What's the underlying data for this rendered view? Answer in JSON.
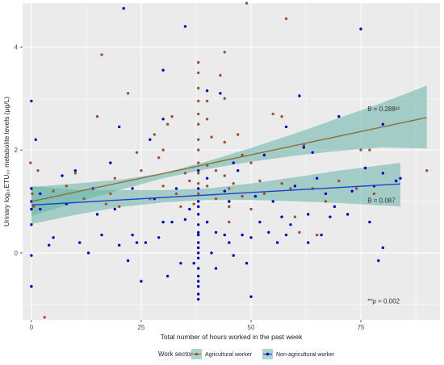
{
  "chart_data": {
    "type": "scatter",
    "xlabel": "Total number of hours worked in the past week",
    "ylabel": "Urinary log₁₀ETU₁₀ metabolite levels (μg/L)",
    "xlim": [
      -2,
      93
    ],
    "ylim": [
      -1.3,
      4.85
    ],
    "xticks": [
      0,
      25,
      50,
      75
    ],
    "yticks": [
      0,
      2,
      4
    ],
    "grid": true,
    "legend_title": "Work sector",
    "legend_placement": "bottom",
    "annotations": [
      {
        "text": "B = 0.288²²",
        "x": 76.5,
        "y": 2.75,
        "anchor": "start"
      },
      {
        "text": "B = 0.087",
        "x": 76.5,
        "y": 0.98,
        "anchor": "start"
      },
      {
        "text": "**p = 0.002",
        "x": 76.5,
        "y": -0.98,
        "anchor": "start"
      }
    ],
    "colors": {
      "agricultural_points": "#a0522d",
      "agricultural_line": "#8b6f3a",
      "non_agricultural_points": "#0000cc",
      "non_agricultural_line": "#1a3fd0",
      "ribbon": "#66b2a6",
      "panel_bg": "#ebebeb",
      "grid": "#ffffff"
    },
    "series": [
      {
        "name": "Agricultural worker",
        "color": "#a0522d",
        "fit": {
          "x": [
            0,
            90
          ],
          "y": [
            1.0,
            2.63
          ]
        },
        "ci_lower": {
          "x": [
            0,
            10,
            20,
            30,
            40,
            50,
            60,
            70,
            80,
            90
          ],
          "y": [
            0.72,
            0.98,
            1.22,
            1.45,
            1.63,
            1.77,
            1.89,
            1.98,
            2.05,
            2.03
          ]
        },
        "ci_upper": {
          "x": [
            0,
            10,
            20,
            30,
            40,
            50,
            60,
            70,
            80,
            90
          ],
          "y": [
            1.28,
            1.35,
            1.42,
            1.55,
            1.78,
            2.04,
            2.32,
            2.62,
            2.92,
            3.25
          ]
        },
        "points": [
          [
            -0.2,
            1.75
          ],
          [
            0.2,
            1.15
          ],
          [
            0.5,
            0.9
          ],
          [
            1.5,
            1.6
          ],
          [
            3,
            -1.25
          ],
          [
            5,
            1.2
          ],
          [
            8,
            1.3
          ],
          [
            10,
            1.55
          ],
          [
            12,
            1.05
          ],
          [
            15,
            2.65
          ],
          [
            16,
            3.85
          ],
          [
            17,
            0.95
          ],
          [
            18,
            1.15
          ],
          [
            19,
            1.45
          ],
          [
            20,
            0.9
          ],
          [
            22,
            3.1
          ],
          [
            24,
            1.95
          ],
          [
            25,
            1.6
          ],
          [
            27,
            1.05
          ],
          [
            28,
            2.3
          ],
          [
            29,
            1.85
          ],
          [
            30,
            2.0
          ],
          [
            30,
            1.3
          ],
          [
            31,
            2.5
          ],
          [
            32,
            2.65
          ],
          [
            33,
            1.15
          ],
          [
            34,
            0.9
          ],
          [
            35,
            1.55
          ],
          [
            36,
            1.4
          ],
          [
            37,
            0.95
          ],
          [
            38,
            3.7
          ],
          [
            38,
            3.5
          ],
          [
            38,
            3.2
          ],
          [
            38,
            2.95
          ],
          [
            38,
            2.7
          ],
          [
            38,
            2.5
          ],
          [
            38,
            2.2
          ],
          [
            38,
            2.0
          ],
          [
            38,
            1.75
          ],
          [
            38,
            1.55
          ],
          [
            38,
            1.35
          ],
          [
            38,
            1.15
          ],
          [
            38,
            0.9
          ],
          [
            40,
            2.95
          ],
          [
            40,
            2.6
          ],
          [
            40,
            1.7
          ],
          [
            40,
            1.3
          ],
          [
            41,
            2.25
          ],
          [
            42,
            1.6
          ],
          [
            42,
            1.05
          ],
          [
            43,
            3.45
          ],
          [
            44,
            3.9
          ],
          [
            44,
            3.0
          ],
          [
            44,
            2.15
          ],
          [
            44,
            1.5
          ],
          [
            45,
            1.25
          ],
          [
            45,
            0.9
          ],
          [
            46,
            1.35
          ],
          [
            47,
            2.3
          ],
          [
            48,
            1.9
          ],
          [
            48,
            1.1
          ],
          [
            49,
            4.85
          ],
          [
            50,
            1.75
          ],
          [
            50,
            0.85
          ],
          [
            52,
            1.4
          ],
          [
            53,
            1.15
          ],
          [
            55,
            2.7
          ],
          [
            57,
            2.65
          ],
          [
            57,
            1.35
          ],
          [
            59,
            1.25
          ],
          [
            60,
            0.7
          ],
          [
            61,
            0.4
          ],
          [
            62,
            2.1
          ],
          [
            64,
            1.25
          ],
          [
            65,
            0.35
          ],
          [
            67,
            1.0
          ],
          [
            70,
            1.4
          ],
          [
            74,
            1.25
          ],
          [
            75,
            2.0
          ],
          [
            77,
            2.0
          ],
          [
            78,
            1.15
          ],
          [
            90,
            1.6
          ],
          [
            58,
            4.55
          ],
          [
            45,
            0.6
          ]
        ]
      },
      {
        "name": "Non-agricultural worker",
        "color": "#0000cc",
        "fit": {
          "x": [
            0,
            84
          ],
          "y": [
            0.93,
            1.34
          ]
        },
        "ci_lower": {
          "x": [
            0,
            10,
            20,
            30,
            40,
            50,
            60,
            70,
            84
          ],
          "y": [
            0.56,
            0.74,
            0.89,
            0.98,
            1.03,
            1.03,
            1.0,
            0.97,
            0.9
          ]
        },
        "ci_upper": {
          "x": [
            0,
            10,
            20,
            30,
            40,
            50,
            60,
            70,
            84
          ],
          "y": [
            1.3,
            1.23,
            1.22,
            1.22,
            1.25,
            1.35,
            1.47,
            1.6,
            1.75
          ]
        },
        "points": [
          [
            0,
            2.95
          ],
          [
            0,
            1.25
          ],
          [
            0,
            1.0
          ],
          [
            0,
            0.85
          ],
          [
            0,
            0.55
          ],
          [
            0,
            -0.05
          ],
          [
            0,
            -0.65
          ],
          [
            1,
            2.2
          ],
          [
            2,
            1.15
          ],
          [
            2,
            0.85
          ],
          [
            4,
            0.15
          ],
          [
            5,
            0.3
          ],
          [
            7,
            1.5
          ],
          [
            8,
            0.95
          ],
          [
            10,
            1.6
          ],
          [
            11,
            0.2
          ],
          [
            13,
            0.0
          ],
          [
            14,
            1.25
          ],
          [
            15,
            0.75
          ],
          [
            16,
            0.35
          ],
          [
            18,
            1.75
          ],
          [
            19,
            0.85
          ],
          [
            20,
            2.45
          ],
          [
            20,
            0.15
          ],
          [
            21,
            4.75
          ],
          [
            22,
            -0.15
          ],
          [
            23,
            0.35
          ],
          [
            24,
            0.2
          ],
          [
            25,
            -0.55
          ],
          [
            26,
            0.2
          ],
          [
            27,
            2.2
          ],
          [
            28,
            1.05
          ],
          [
            29,
            0.3
          ],
          [
            30,
            3.55
          ],
          [
            30,
            2.6
          ],
          [
            30,
            0.6
          ],
          [
            31,
            -0.45
          ],
          [
            32,
            0.6
          ],
          [
            33,
            1.25
          ],
          [
            34,
            -0.2
          ],
          [
            35,
            4.4
          ],
          [
            35,
            0.65
          ],
          [
            36,
            0.85
          ],
          [
            37,
            -0.2
          ],
          [
            38,
            0.4
          ],
          [
            38,
            0.0
          ],
          [
            38,
            -0.3
          ],
          [
            38,
            -0.9
          ],
          [
            38,
            -0.45
          ],
          [
            38,
            -0.65
          ],
          [
            38,
            1.6
          ],
          [
            38,
            1.0
          ],
          [
            38,
            0.55
          ],
          [
            38,
            0.2
          ],
          [
            38,
            -0.1
          ],
          [
            38,
            0.75
          ],
          [
            38,
            0.35
          ],
          [
            38,
            -0.8
          ],
          [
            38,
            1.25
          ],
          [
            38,
            0.9
          ],
          [
            38,
            -0.55
          ],
          [
            38,
            0.1
          ],
          [
            40,
            3.15
          ],
          [
            40,
            1.45
          ],
          [
            40,
            0.6
          ],
          [
            41,
            0.0
          ],
          [
            42,
            0.4
          ],
          [
            42,
            -0.3
          ],
          [
            43,
            3.1
          ],
          [
            44,
            1.2
          ],
          [
            44,
            0.35
          ],
          [
            45,
            1.0
          ],
          [
            45,
            0.2
          ],
          [
            46,
            -0.05
          ],
          [
            47,
            1.6
          ],
          [
            48,
            0.35
          ],
          [
            49,
            -0.2
          ],
          [
            50,
            -0.85
          ],
          [
            50,
            0.3
          ],
          [
            51,
            1.1
          ],
          [
            52,
            0.6
          ],
          [
            53,
            1.9
          ],
          [
            54,
            0.4
          ],
          [
            55,
            1.0
          ],
          [
            56,
            0.2
          ],
          [
            57,
            0.7
          ],
          [
            58,
            0.35
          ],
          [
            58,
            2.45
          ],
          [
            59,
            0.55
          ],
          [
            60,
            1.3
          ],
          [
            61,
            3.05
          ],
          [
            62,
            2.05
          ],
          [
            63,
            0.75
          ],
          [
            64,
            1.95
          ],
          [
            65,
            1.45
          ],
          [
            66,
            0.35
          ],
          [
            67,
            1.15
          ],
          [
            68,
            0.7
          ],
          [
            70,
            2.65
          ],
          [
            72,
            0.75
          ],
          [
            73,
            1.2
          ],
          [
            75,
            4.35
          ],
          [
            76,
            1.65
          ],
          [
            77,
            0.6
          ],
          [
            78,
            1.3
          ],
          [
            79,
            -0.15
          ],
          [
            80,
            2.5
          ],
          [
            80,
            1.55
          ],
          [
            80,
            0.1
          ],
          [
            83,
            1.4
          ],
          [
            84,
            1.45
          ],
          [
            63,
            0.2
          ],
          [
            69,
            0.9
          ],
          [
            23,
            1.25
          ],
          [
            46,
            1.75
          ]
        ]
      }
    ]
  }
}
